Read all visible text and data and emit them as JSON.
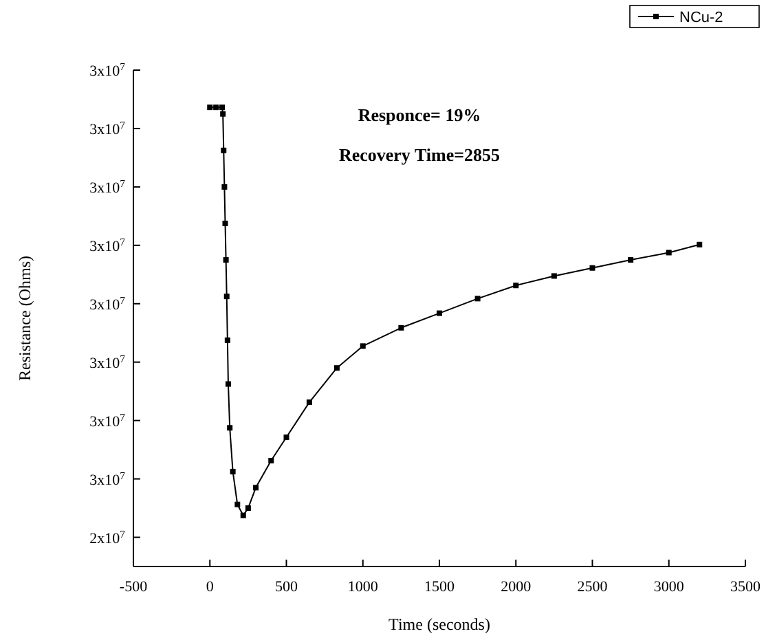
{
  "chart_data": {
    "type": "line",
    "xlabel": "Time (seconds)",
    "ylabel": "Resistance (Ohms)",
    "annotations": [
      "Responce= 19%",
      "Recovery Time=2855"
    ],
    "xlim": [
      -500,
      3500
    ],
    "xticks": [
      -500,
      0,
      500,
      1000,
      1500,
      2000,
      2500,
      3000,
      3500
    ],
    "ylim": [
      24100000,
      30900000
    ],
    "yticks": [
      {
        "value": 24500000,
        "label": "2x10$^{7}$"
      },
      {
        "value": 25300000,
        "label": "3x10$^{7}$"
      },
      {
        "value": 26100000,
        "label": "3x10$^{7}$"
      },
      {
        "value": 26900000,
        "label": "3x10$^{7}$"
      },
      {
        "value": 27700000,
        "label": "3x10$^{7}$"
      },
      {
        "value": 28500000,
        "label": "3x10$^{7}$"
      },
      {
        "value": 29300000,
        "label": "3x10$^{7}$"
      },
      {
        "value": 30100000,
        "label": "3x10$^{7}$"
      },
      {
        "value": 30900000,
        "label": "3x10$^{7}$"
      }
    ],
    "marker": "square",
    "legend": "top right",
    "grid": false,
    "series": [
      {
        "name": "NCu-2",
        "color": "#000000",
        "x": [
          0,
          40,
          80,
          85,
          90,
          95,
          100,
          105,
          110,
          115,
          120,
          130,
          150,
          180,
          218,
          250,
          300,
          400,
          500,
          650,
          830,
          1000,
          1250,
          1500,
          1750,
          2000,
          2250,
          2500,
          2750,
          3000,
          3200
        ],
        "values": [
          30390000,
          30390000,
          30390000,
          30300000,
          29800000,
          29300000,
          28800000,
          28300000,
          27800000,
          27200000,
          26600000,
          26000000,
          25400000,
          24950000,
          24800000,
          24900000,
          25180000,
          25550000,
          25870000,
          26350000,
          26820000,
          27120000,
          27370000,
          27570000,
          27770000,
          27950000,
          28080000,
          28190000,
          28300000,
          28400000,
          28510000
        ]
      }
    ]
  }
}
